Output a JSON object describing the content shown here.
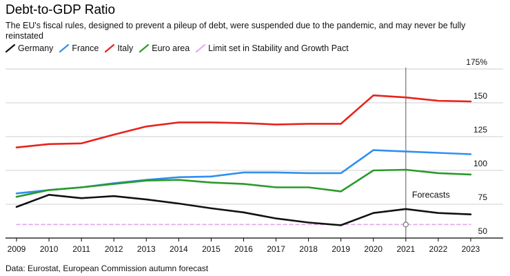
{
  "title": "Debt-to-GDP Ratio",
  "subtitle": "The EU's fiscal rules, designed to prevent a pileup of debt, were suspended due to the pandemic, and may never be fully reinstated",
  "source": "Data: Eurostat, European Commission autumn forecast",
  "colors": {
    "germany": "#111111",
    "france": "#2f8ff0",
    "italy": "#e8221d",
    "euro_area": "#2a9a2a",
    "limit": "#e6a8f0",
    "grid": "#cfcfcf",
    "forecast_line": "#555555"
  },
  "legend": [
    {
      "label": "Germany",
      "color": "#111111",
      "dashed": false
    },
    {
      "label": "France",
      "color": "#2f8ff0",
      "dashed": false
    },
    {
      "label": "Italy",
      "color": "#e8221d",
      "dashed": false
    },
    {
      "label": "Euro area",
      "color": "#2a9a2a",
      "dashed": false
    },
    {
      "label": "Limit set in Stability and Growth Pact",
      "color": "#e6a8f0",
      "dashed": true
    }
  ],
  "chart_data": {
    "type": "line",
    "x": [
      2009,
      2010,
      2011,
      2012,
      2013,
      2014,
      2015,
      2016,
      2017,
      2018,
      2019,
      2020,
      2021,
      2022,
      2023
    ],
    "x_tick_labels": [
      "2009",
      "2010",
      "2011",
      "2012",
      "2013",
      "2014",
      "2015",
      "2016",
      "2017",
      "2018",
      "2019",
      "2020",
      "2021",
      "2022",
      "2023"
    ],
    "ylim": [
      50,
      175
    ],
    "y_ticks": [
      50,
      75,
      100,
      125,
      150,
      175
    ],
    "y_tick_labels": [
      "50",
      "75",
      "100",
      "125",
      "150",
      "175%"
    ],
    "y_axis_position": "right",
    "grid": true,
    "legend_position": "top-left",
    "series": [
      {
        "name": "Germany",
        "color": "#111111",
        "values": [
          73,
          82,
          79.5,
          81,
          78.5,
          75.5,
          72,
          69,
          64.5,
          61.5,
          59.5,
          68.5,
          71.5,
          68.5,
          67.5
        ]
      },
      {
        "name": "France",
        "color": "#2f8ff0",
        "values": [
          83,
          85.5,
          87.5,
          90.5,
          93,
          95,
          95.5,
          98.5,
          98.5,
          98,
          98,
          115,
          114,
          113,
          112
        ]
      },
      {
        "name": "Italy",
        "color": "#e8221d",
        "values": [
          117,
          119.5,
          120,
          126.5,
          132.5,
          135.5,
          135.5,
          135,
          134,
          134.5,
          134.5,
          155.5,
          154,
          151.5,
          151
        ]
      },
      {
        "name": "Euro area",
        "color": "#2a9a2a",
        "values": [
          80.5,
          85.5,
          87.5,
          90,
          92.5,
          93,
          91,
          90,
          87.5,
          87.5,
          84.5,
          100,
          100.5,
          98,
          97
        ]
      },
      {
        "name": "Limit set in Stability and Growth Pact",
        "color": "#e6a8f0",
        "dashed": true,
        "values": [
          60,
          60,
          60,
          60,
          60,
          60,
          60,
          60,
          60,
          60,
          60,
          60,
          60,
          60,
          60
        ]
      }
    ],
    "forecast_start": 2021,
    "annotations": [
      {
        "text": "Forecasts",
        "x": 2021,
        "y": 82
      }
    ]
  }
}
